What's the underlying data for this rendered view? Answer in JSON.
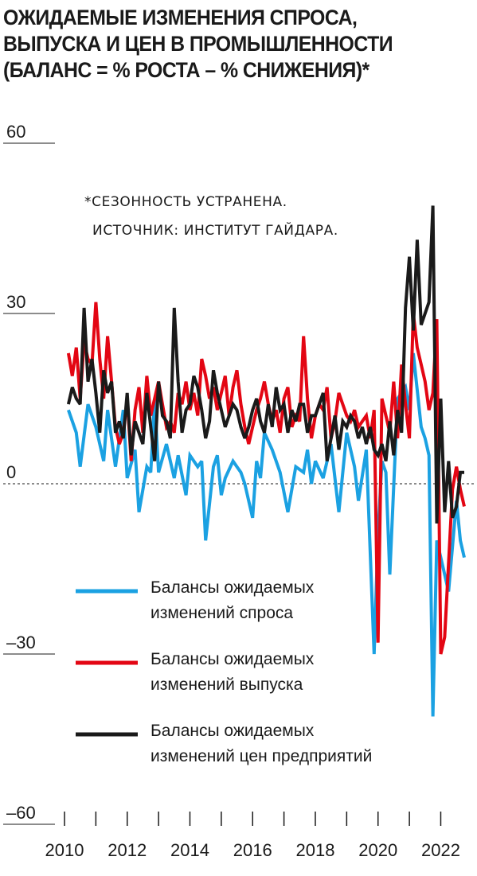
{
  "title_lines": [
    "ОЖИДАЕМЫЕ ИЗМЕНЕНИЯ СПРОСА,",
    "ВЫПУСКА И ЦЕН В ПРОМЫШЛЕННОСТИ",
    "(БАЛАНС = % РОСТА – % СНИЖЕНИЯ)*"
  ],
  "notes": [
    "*СЕЗОННОСТЬ УСТРАНЕНА.",
    "ИСТОЧНИК: ИНСТИТУТ ГАЙДАРА."
  ],
  "chart_data": {
    "type": "line",
    "title": "ОЖИДАЕМЫЕ ИЗМЕНЕНИЯ СПРОСА, ВЫПУСКА И ЦЕН В ПРОМЫШЛЕННОСТИ (БАЛАНС = % РОСТА – % СНИЖЕНИЯ)*",
    "xlim": [
      2010,
      2022.75
    ],
    "ylim": [
      -60,
      60
    ],
    "x_ticks": [
      2010,
      2012,
      2014,
      2016,
      2018,
      2020,
      2022
    ],
    "x_tick_labels": [
      "2010",
      "2012",
      "2014",
      "2016",
      "2018",
      "2020",
      "2022"
    ],
    "minor_x_ticks": [
      2010,
      2011,
      2012,
      2013,
      2014,
      2015,
      2016,
      2017,
      2018,
      2019,
      2020,
      2021,
      2022
    ],
    "y_ticks": [
      60,
      30,
      0,
      -30,
      -60
    ],
    "y_tick_labels": [
      "60",
      "30",
      "0",
      "–30",
      "–60"
    ],
    "zero_line": "dashed",
    "legend_placement": "lower-left",
    "series": [
      {
        "name": "Балансы ожидаемых изменений спроса",
        "legend_lines": [
          "Балансы ожидаемых",
          "изменений спроса"
        ],
        "color": "#1ba1e2",
        "x": [
          2010.125,
          2010.375,
          2010.5,
          2010.75,
          2011.0,
          2011.25,
          2011.375,
          2011.625,
          2011.875,
          2012.0,
          2012.25,
          2012.375,
          2012.625,
          2012.75,
          2012.875,
          2013.0,
          2013.25,
          2013.5,
          2013.625,
          2013.875,
          2014.0,
          2014.25,
          2014.375,
          2014.5,
          2014.75,
          2014.875,
          2015.0,
          2015.125,
          2015.375,
          2015.5,
          2015.625,
          2015.75,
          2016.0,
          2016.125,
          2016.25,
          2016.375,
          2016.625,
          2016.875,
          2017.125,
          2017.375,
          2017.625,
          2017.75,
          2017.875,
          2018.0,
          2018.25,
          2018.5,
          2018.75,
          2019.0,
          2019.25,
          2019.375,
          2019.625,
          2019.875,
          2020.0,
          2020.125,
          2020.25,
          2020.375,
          2020.625,
          2020.875,
          2021.0,
          2021.125,
          2021.375,
          2021.5,
          2021.625,
          2021.75,
          2021.875,
          2022.0,
          2022.25,
          2022.5,
          2022.625,
          2022.75
        ],
        "values": [
          13,
          9,
          3,
          14,
          10,
          4,
          13,
          3,
          13,
          1,
          6,
          -5,
          3,
          2,
          15,
          2,
          7,
          1,
          5,
          -2,
          5,
          3,
          4,
          -10,
          3,
          5,
          -2,
          1,
          4,
          3,
          2,
          0,
          -6,
          4,
          1,
          9,
          6,
          2,
          -5,
          3,
          2,
          6,
          0,
          4,
          1,
          7,
          -5,
          9,
          3,
          -3,
          6,
          -30,
          -9,
          4,
          2,
          -16,
          15,
          17,
          13,
          23,
          10,
          8,
          5,
          -41,
          -10,
          -13,
          -19,
          -3,
          -10,
          -13
        ]
      },
      {
        "name": "Балансы ожидаемых изменений выпуска",
        "legend_lines": [
          "Балансы ожидаемых",
          "изменений выпуска"
        ],
        "color": "#e30613",
        "x": [
          2010.125,
          2010.25,
          2010.375,
          2010.5,
          2010.625,
          2010.75,
          2010.875,
          2011.0,
          2011.125,
          2011.25,
          2011.375,
          2011.5,
          2011.625,
          2011.75,
          2011.875,
          2012.0,
          2012.125,
          2012.25,
          2012.375,
          2012.5,
          2012.625,
          2012.75,
          2012.875,
          2013.0,
          2013.125,
          2013.25,
          2013.375,
          2013.5,
          2013.625,
          2013.75,
          2013.875,
          2014.0,
          2014.125,
          2014.25,
          2014.375,
          2014.5,
          2014.625,
          2014.75,
          2014.875,
          2015.0,
          2015.125,
          2015.25,
          2015.375,
          2015.5,
          2015.625,
          2015.75,
          2015.875,
          2016.0,
          2016.125,
          2016.25,
          2016.375,
          2016.5,
          2016.625,
          2016.75,
          2016.875,
          2017.0,
          2017.125,
          2017.25,
          2017.375,
          2017.5,
          2017.625,
          2017.75,
          2017.875,
          2018.0,
          2018.125,
          2018.25,
          2018.375,
          2018.5,
          2018.625,
          2018.75,
          2018.875,
          2019.0,
          2019.125,
          2019.25,
          2019.375,
          2019.5,
          2019.625,
          2019.75,
          2019.875,
          2020.0,
          2020.125,
          2020.25,
          2020.375,
          2020.5,
          2020.625,
          2020.75,
          2020.875,
          2021.0,
          2021.125,
          2021.25,
          2021.375,
          2021.5,
          2021.625,
          2021.75,
          2021.875,
          2022.0,
          2022.125,
          2022.25,
          2022.375,
          2022.5,
          2022.625,
          2022.75
        ],
        "values": [
          23,
          19,
          24,
          15,
          25,
          22,
          21,
          32,
          22,
          15,
          26,
          18,
          10,
          7,
          9,
          15,
          4,
          13,
          17,
          9,
          19,
          12,
          15,
          18,
          14,
          10,
          11,
          9,
          16,
          14,
          18,
          13,
          16,
          12,
          22,
          19,
          15,
          17,
          13,
          16,
          19,
          12,
          17,
          20,
          14,
          10,
          7,
          10,
          13,
          15,
          18,
          14,
          11,
          13,
          9,
          15,
          17,
          10,
          12,
          11,
          26,
          15,
          8,
          12,
          14,
          13,
          17,
          8,
          11,
          16,
          14,
          12,
          11,
          13,
          10,
          11,
          12,
          8,
          13,
          -28,
          15,
          12,
          9,
          18,
          8,
          21,
          14,
          8,
          30,
          24,
          21,
          18,
          13,
          16,
          29,
          -30,
          -27,
          -14,
          -1,
          3,
          -1,
          -4
        ]
      },
      {
        "name": "Балансы ожидаемых изменений цен предприятий",
        "legend_lines": [
          "Балансы ожидаемых",
          "изменений цен предприятий"
        ],
        "color": "#1a1a1a",
        "x": [
          2010.125,
          2010.25,
          2010.375,
          2010.5,
          2010.625,
          2010.75,
          2010.875,
          2011.0,
          2011.125,
          2011.25,
          2011.375,
          2011.5,
          2011.625,
          2011.75,
          2011.875,
          2012.0,
          2012.125,
          2012.25,
          2012.375,
          2012.5,
          2012.625,
          2012.75,
          2012.875,
          2013.0,
          2013.125,
          2013.25,
          2013.375,
          2013.5,
          2013.625,
          2013.75,
          2013.875,
          2014.0,
          2014.125,
          2014.25,
          2014.375,
          2014.5,
          2014.625,
          2014.75,
          2014.875,
          2015.0,
          2015.125,
          2015.25,
          2015.375,
          2015.5,
          2015.625,
          2015.75,
          2015.875,
          2016.0,
          2016.125,
          2016.25,
          2016.375,
          2016.5,
          2016.625,
          2016.75,
          2016.875,
          2017.0,
          2017.125,
          2017.25,
          2017.375,
          2017.5,
          2017.625,
          2017.75,
          2017.875,
          2018.0,
          2018.125,
          2018.25,
          2018.375,
          2018.5,
          2018.625,
          2018.75,
          2018.875,
          2019.0,
          2019.125,
          2019.25,
          2019.375,
          2019.5,
          2019.625,
          2019.75,
          2019.875,
          2020.0,
          2020.125,
          2020.25,
          2020.375,
          2020.5,
          2020.625,
          2020.75,
          2020.875,
          2021.0,
          2021.125,
          2021.25,
          2021.375,
          2021.5,
          2021.625,
          2021.75,
          2021.875,
          2022.0,
          2022.125,
          2022.25,
          2022.375,
          2022.5,
          2022.625,
          2022.75
        ],
        "values": [
          14,
          17,
          15,
          14,
          31,
          18,
          22,
          16,
          9,
          20,
          16,
          18,
          9,
          11,
          8,
          16,
          5,
          11,
          9,
          7,
          16,
          10,
          4,
          18,
          12,
          11,
          8,
          31,
          18,
          9,
          13,
          14,
          19,
          17,
          13,
          8,
          11,
          20,
          16,
          13,
          10,
          12,
          14,
          13,
          10,
          8,
          10,
          13,
          15,
          11,
          9,
          14,
          10,
          17,
          13,
          14,
          9,
          13,
          11,
          14,
          14,
          9,
          12,
          12,
          14,
          16,
          4,
          8,
          12,
          6,
          11,
          10,
          12,
          11,
          8,
          10,
          7,
          10,
          6,
          5,
          7,
          4,
          11,
          5,
          13,
          9,
          31,
          40,
          27,
          43,
          28,
          30,
          32,
          49,
          -7,
          15,
          -5,
          4,
          -6,
          -4,
          2,
          2
        ]
      }
    ]
  }
}
